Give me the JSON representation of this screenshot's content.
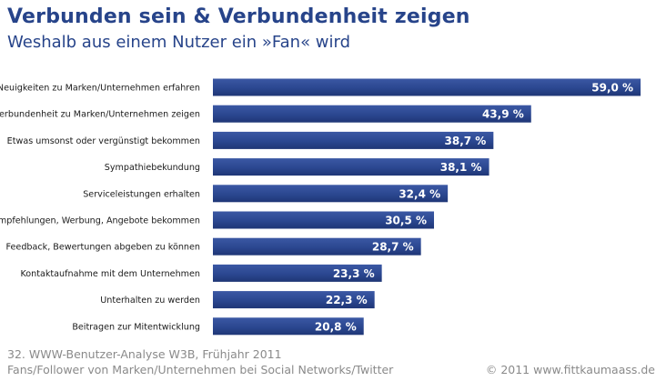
{
  "title": "Verbunden sein & Verbundenheit zeigen",
  "subtitle": "Weshalb aus einem Nutzer ein »Fan« wird",
  "footer": {
    "source_line1": "32. WWW-Benutzer-Analyse W3B, Frühjahr 2011",
    "source_line2": "Fans/Follower von Marken/Unternehmen bei Social Networks/Twitter",
    "copyright": "© 2011 www.fittkaumaass.de"
  },
  "colors": {
    "bar": "#2b4790",
    "bar_dark": "#1f3676",
    "title": "#27448a",
    "label_text": "#ffffff"
  },
  "chart_data": {
    "type": "bar",
    "orientation": "horizontal",
    "categories": [
      "Neuigkeiten zu Marken/Unternehmen erfahren",
      "Verbundenheit zu Marken/Unternehmen zeigen",
      "Etwas umsonst oder vergünstigt bekommen",
      "Sympathiebekundung",
      "Serviceleistungen erhalten",
      "Empfehlungen, Werbung, Angebote bekommen",
      "Feedback, Bewertungen abgeben zu können",
      "Kontaktaufnahme mit dem Unternehmen",
      "Unterhalten zu werden",
      "Beitragen zur Mitentwicklung"
    ],
    "values": [
      59.0,
      43.9,
      38.7,
      38.1,
      32.4,
      30.5,
      28.7,
      23.3,
      22.3,
      20.8
    ],
    "value_labels": [
      "59,0 %",
      "43,9 %",
      "38,7 %",
      "38,1 %",
      "32,4 %",
      "30,5 %",
      "28,7 %",
      "23,3 %",
      "22,3 %",
      "20,8 %"
    ],
    "xlim": [
      0,
      61.5
    ],
    "grid": false,
    "legend": "none"
  }
}
